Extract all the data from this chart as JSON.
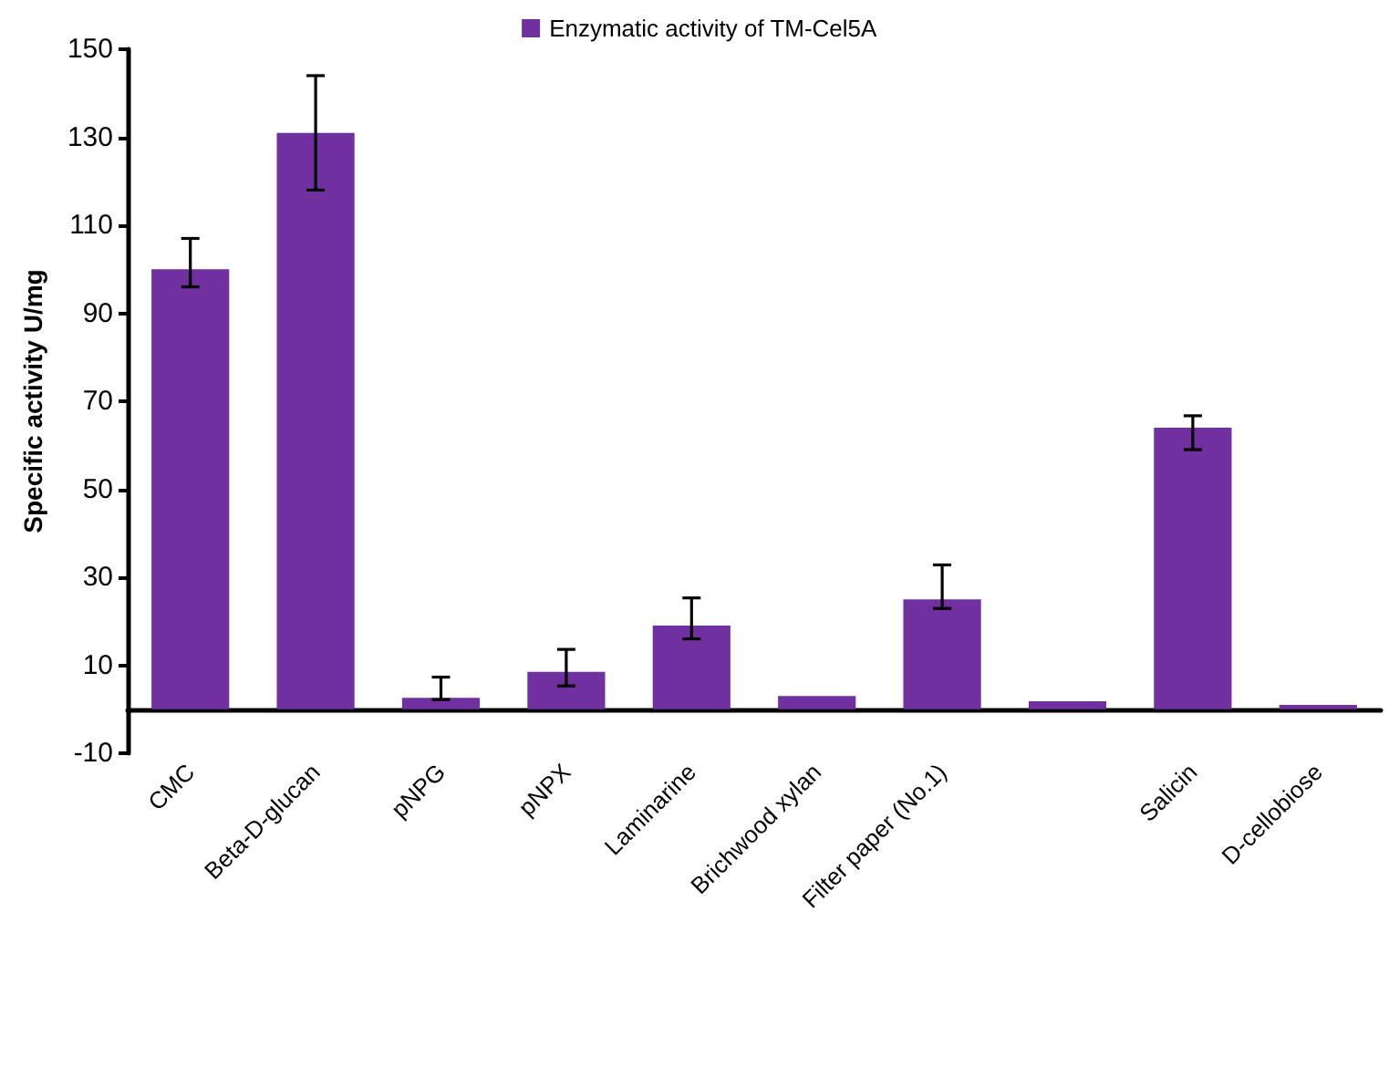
{
  "chart_data": {
    "type": "bar",
    "ylabel": "Specific activity U/mg",
    "categories": [
      "CMC",
      "Beta-D-glucan",
      "pNPG",
      "pNPX",
      "Laminarine",
      "Brichwood xylan",
      "Filter paper (No.1)",
      null,
      "Salicin",
      "D-cellobiose"
    ],
    "series": [
      {
        "name": "Enzymatic activity of TM-Cel5A",
        "color": "#7030a0",
        "values": [
          100,
          131,
          2.6,
          8.5,
          19,
          3,
          25,
          1.8,
          64,
          1
        ],
        "errors": [
          [
            96,
            107
          ],
          [
            118,
            144
          ],
          [
            2.2,
            7.3
          ],
          [
            5.3,
            13.6
          ],
          [
            16,
            25.3
          ],
          null,
          [
            22.9,
            32.8
          ],
          null,
          [
            59,
            66.7
          ],
          null
        ]
      }
    ],
    "ylim": [
      -10,
      150
    ],
    "yticks": [
      -10,
      10,
      30,
      50,
      70,
      90,
      110,
      130,
      150
    ],
    "grid": false,
    "legend": "top"
  }
}
